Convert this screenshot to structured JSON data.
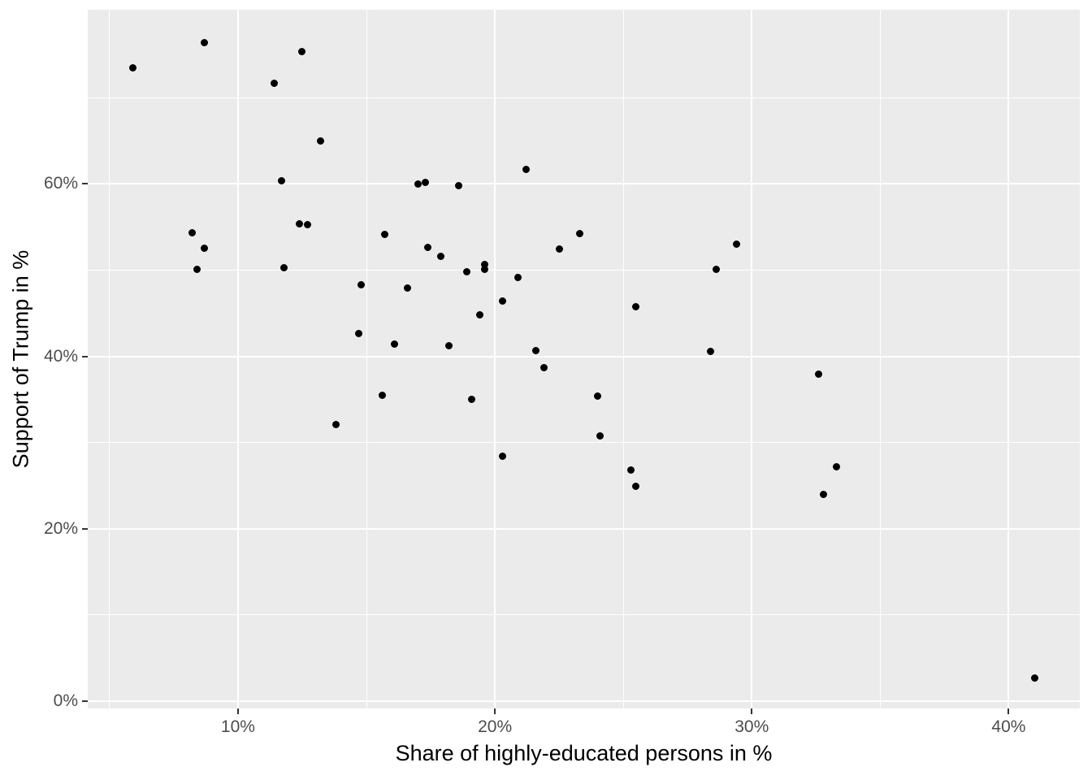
{
  "figure": {
    "background_color": "#FFFFFF",
    "panel_background_color": "#EBEBEB",
    "gridline_color": "#FFFFFF",
    "point_color": "#000000",
    "tick_mark_color": "#333333",
    "tick_label_color": "#4D4D4D",
    "axis_title_color": "#000000"
  },
  "chart_data": {
    "type": "scatter",
    "title": "",
    "xlabel": "Share of highly-educated persons in %",
    "ylabel": "Support of Trump in %",
    "xlim": [
      4.15,
      42.77
    ],
    "ylim": [
      -0.85,
      80.2
    ],
    "grid": true,
    "legend": false,
    "x_ticks": {
      "values": [
        10,
        20,
        30,
        40
      ],
      "labels": [
        "10%",
        "20%",
        "30%",
        "40%"
      ],
      "minor": [
        5,
        15,
        25,
        35
      ]
    },
    "y_ticks": {
      "values": [
        0,
        20,
        40,
        60
      ],
      "labels": [
        "0%",
        "20%",
        "40%",
        "60%"
      ],
      "minor": [
        10,
        30,
        50,
        70
      ]
    },
    "points": [
      [
        5.9,
        73.5
      ],
      [
        8.7,
        76.4
      ],
      [
        12.5,
        75.3
      ],
      [
        11.4,
        71.7
      ],
      [
        13.2,
        65.0
      ],
      [
        11.7,
        60.4
      ],
      [
        21.2,
        61.7
      ],
      [
        17.0,
        60.0
      ],
      [
        17.3,
        60.2
      ],
      [
        18.6,
        59.8
      ],
      [
        12.4,
        55.4
      ],
      [
        12.7,
        55.3
      ],
      [
        8.2,
        54.3
      ],
      [
        8.7,
        52.5
      ],
      [
        15.7,
        54.1
      ],
      [
        17.4,
        52.6
      ],
      [
        22.5,
        52.4
      ],
      [
        23.3,
        54.2
      ],
      [
        29.4,
        53.0
      ],
      [
        17.9,
        51.6
      ],
      [
        18.9,
        49.8
      ],
      [
        19.6,
        50.7
      ],
      [
        19.6,
        50.1
      ],
      [
        20.9,
        49.1
      ],
      [
        20.3,
        46.4
      ],
      [
        19.4,
        44.8
      ],
      [
        18.2,
        41.2
      ],
      [
        21.6,
        40.7
      ],
      [
        21.9,
        38.7
      ],
      [
        19.1,
        35.0
      ],
      [
        24.0,
        35.4
      ],
      [
        24.1,
        30.8
      ],
      [
        20.3,
        28.4
      ],
      [
        25.3,
        26.8
      ],
      [
        25.5,
        24.9
      ],
      [
        25.5,
        45.8
      ],
      [
        28.6,
        50.1
      ],
      [
        28.4,
        40.6
      ],
      [
        8.4,
        50.1
      ],
      [
        11.8,
        50.3
      ],
      [
        14.8,
        48.3
      ],
      [
        16.6,
        47.9
      ],
      [
        14.7,
        42.6
      ],
      [
        16.1,
        41.4
      ],
      [
        15.6,
        35.5
      ],
      [
        13.8,
        32.1
      ],
      [
        32.6,
        37.9
      ],
      [
        33.3,
        27.2
      ],
      [
        32.8,
        24.0
      ],
      [
        41.0,
        2.7
      ]
    ]
  }
}
